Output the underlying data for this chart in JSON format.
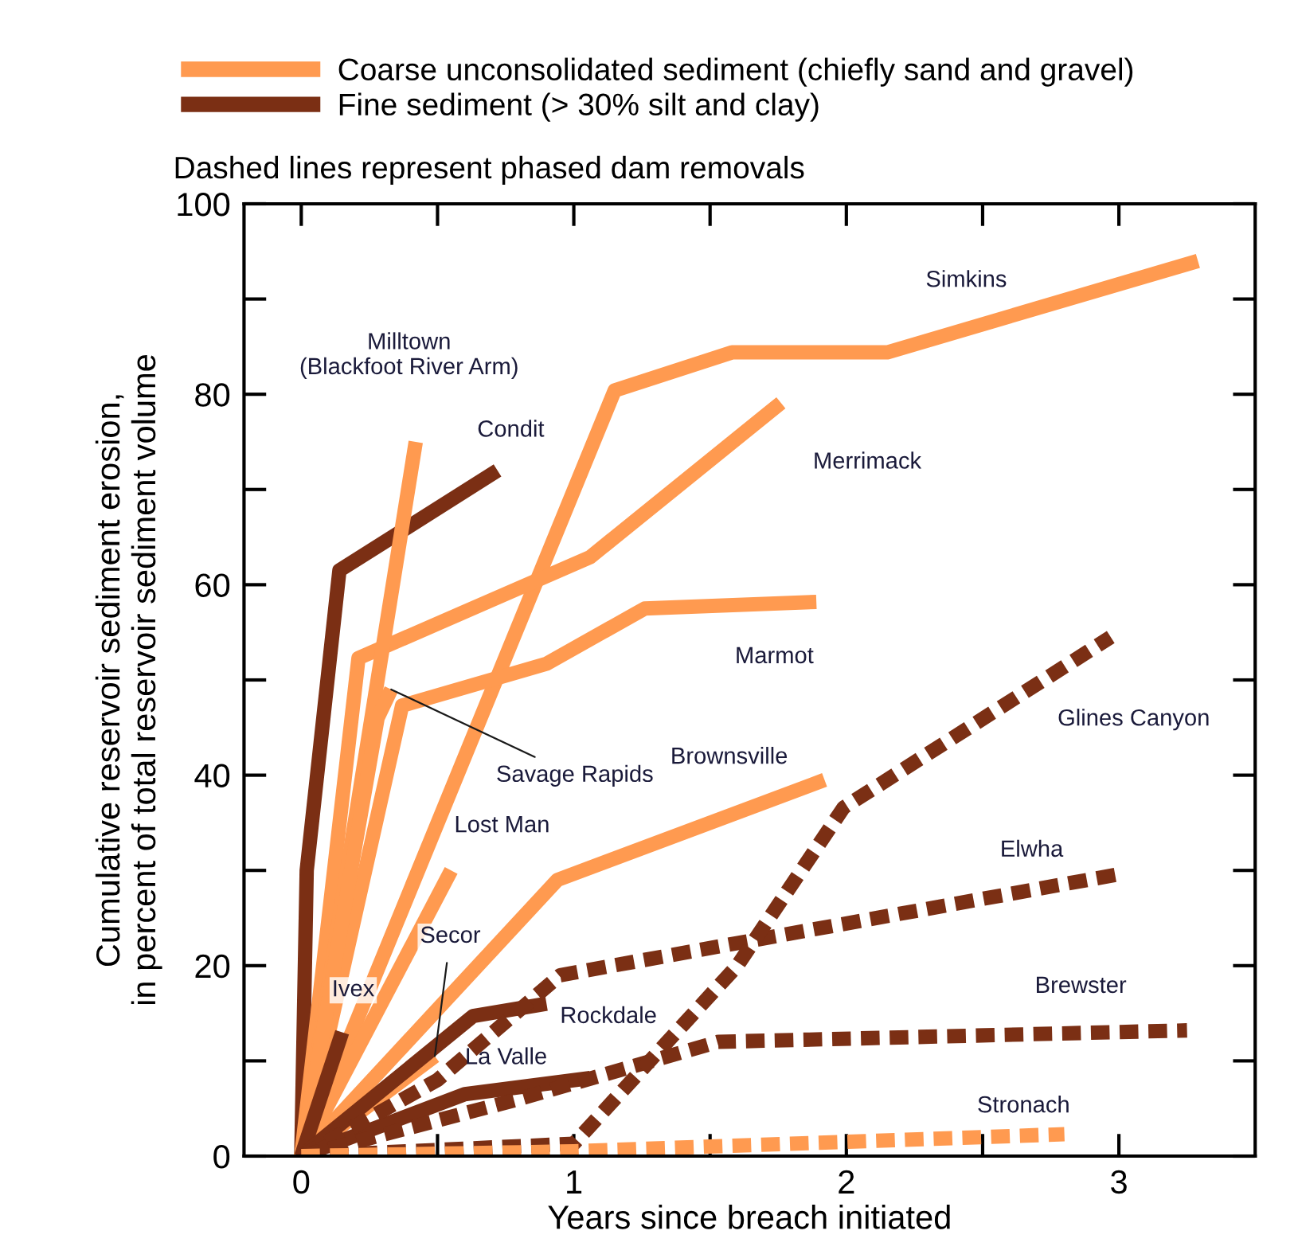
{
  "chart_data": {
    "type": "line",
    "xlabel": "Years since breach initiated",
    "ylabel": "Cumulative reservoir sediment erosion,\nin percent of total reservoir sediment volume",
    "xlim": [
      -0.21,
      3.5
    ],
    "ylim": [
      0,
      100
    ],
    "xticks": [
      0,
      {
        "value": 0.5,
        "label": null
      },
      1,
      {
        "value": 1.5,
        "label": null
      },
      2,
      {
        "value": 2.5,
        "label": null
      },
      3
    ],
    "yticks": [
      0,
      {
        "value": 10,
        "label": null
      },
      20,
      {
        "value": 30,
        "label": null
      },
      40,
      {
        "value": 50,
        "label": null
      },
      60,
      {
        "value": 70,
        "label": null
      },
      80,
      {
        "value": 90,
        "label": null
      },
      100
    ],
    "grid": false,
    "legend": "top left",
    "marker": "none",
    "series": [
      {
        "name": "Coarse unconsolidated sediment (chiefly sand and gravel)",
        "color": "#ff9a50",
        "line_style": "solid",
        "x": [
          0,
          1.15,
          1.58,
          2.15,
          3.29
        ],
        "values": [
          0,
          80.4,
          84.4,
          84.4,
          94
        ]
      },
      {
        "name": "Fine sediment (> 30% silt and clay)",
        "color": "#7b2f14",
        "line_style": "solid",
        "x": [
          0,
          0.02,
          0.14,
          0.72
        ],
        "values": [
          0,
          30,
          61.5,
          72
        ]
      },
      {
        "color": "#ff9a50",
        "line_style": "solid",
        "x": [
          0,
          0.21,
          1.06,
          1.76
        ],
        "values": [
          0,
          52.3,
          62.9,
          79.1
        ]
      },
      {
        "color": "#ff9a50",
        "line_style": "solid",
        "x": [
          0,
          0.37,
          0.9,
          1.26,
          1.89
        ],
        "values": [
          0,
          47.3,
          51.7,
          57.5,
          58.2
        ]
      },
      {
        "color": "#ff9a50",
        "line_style": "solid",
        "x": [
          0,
          0.42
        ],
        "values": [
          0,
          75
        ]
      },
      {
        "color": "#ff9a50",
        "line_style": "solid",
        "x": [
          0,
          0.94,
          1.92
        ],
        "values": [
          0,
          29,
          39.5
        ]
      },
      {
        "color": "#ff9a50",
        "line_style": "solid",
        "x": [
          0,
          0.55
        ],
        "values": [
          0,
          30
        ]
      },
      {
        "color": "#ff9a50",
        "line_style": "solid",
        "x": [
          0,
          0.49
        ],
        "values": [
          0,
          10.5
        ]
      },
      {
        "color": "#ff9a50",
        "line_style": "solid",
        "x": [
          0,
          0.28,
          0.33
        ],
        "values": [
          0,
          46,
          49
        ]
      },
      {
        "color": "#7b2f14",
        "line_style": "solid",
        "x": [
          0,
          0.15
        ],
        "values": [
          0,
          13
        ]
      },
      {
        "color": "#7b2f14",
        "line_style": "solid",
        "x": [
          0,
          0.63,
          0.9
        ],
        "values": [
          0,
          14.7,
          16
        ]
      },
      {
        "color": "#7b2f14",
        "line_style": "solid",
        "x": [
          0,
          0.6,
          1.06
        ],
        "values": [
          0,
          6.5,
          8.2
        ]
      },
      {
        "color": "#7b2f14",
        "line_style": "dashed",
        "x": [
          0,
          0.5,
          0.95,
          3.0
        ],
        "values": [
          0,
          8,
          19,
          29.6
        ]
      },
      {
        "color": "#7b2f14",
        "line_style": "dashed",
        "x": [
          0,
          0.8,
          1.53,
          3.25
        ],
        "values": [
          0,
          6,
          12,
          13.2
        ]
      },
      {
        "color": "#7b2f14",
        "line_style": "dashed",
        "x": [
          0,
          1.0,
          1.6,
          1.99,
          2.97
        ],
        "values": [
          0,
          1.3,
          20,
          36.6,
          54.5
        ]
      },
      {
        "color": "#ff9a50",
        "line_style": "dashed",
        "x": [
          0,
          1.0,
          2.8
        ],
        "values": [
          0,
          0.5,
          2.3
        ]
      }
    ],
    "annotations": [
      "Dashed lines represent phased dam removals",
      {
        "text": "Simkins",
        "x": 2.44,
        "y": 86.8
      },
      {
        "text": "Condit",
        "x": 0.72,
        "y": 72
      },
      {
        "text": "Merrimack",
        "x": 1.76,
        "y": 79.1
      },
      {
        "text": "Marmot",
        "x": 1.89,
        "y": 58.2
      },
      {
        "text": "Milltown\n(Blackfoot River Arm)",
        "x": 0.42,
        "y": 75
      },
      {
        "text": "Savage Rapids",
        "x": 0.33,
        "y": 49
      },
      {
        "text": "Brownsville",
        "x": 1.57,
        "y": 35.8
      },
      {
        "text": "Lost Man",
        "x": 0.55,
        "y": 30
      },
      {
        "text": "Secor",
        "x": 0.49,
        "y": 10.5
      },
      {
        "text": "Ivex",
        "x": 0.15,
        "y": 13
      },
      {
        "text": "Rockdale",
        "x": 0.9,
        "y": 16
      },
      {
        "text": "La Valle",
        "x": 1.06,
        "y": 8.2
      },
      {
        "text": "Elwha",
        "x": 2.68,
        "y": 27.9
      },
      {
        "text": "Brewster",
        "x": 2.86,
        "y": 12.9
      },
      {
        "text": "Glines Canyon",
        "x": 2.6,
        "y": 47.7
      },
      {
        "text": "Stronach",
        "x": 2.65,
        "y": 2.2
      }
    ]
  }
}
